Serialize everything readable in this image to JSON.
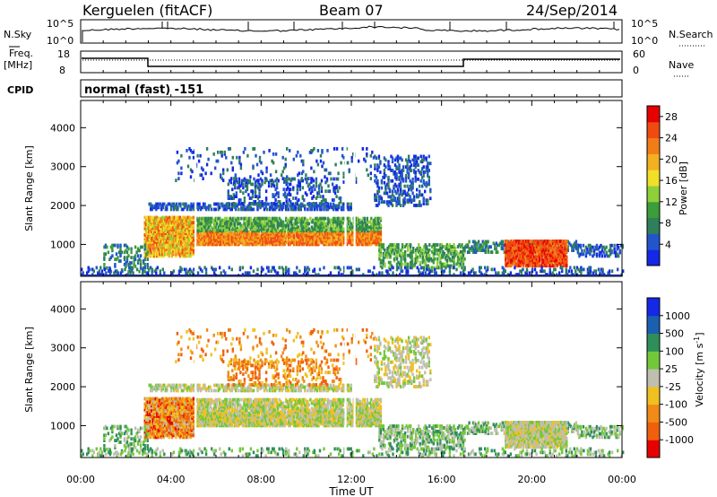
{
  "header": {
    "station": "Kerguelen (fitACF)",
    "beam": "Beam 07",
    "date": "24/Sep/2014"
  },
  "top_panels": {
    "nsky_label": "N.Sky",
    "nsky_tick_top": "10^5",
    "nsky_tick_bottom": "10^0",
    "nsearch_label": "N.Search",
    "nsearch_tick_top": "10^5",
    "nsearch_tick_bottom": "10^0",
    "freq_label_1": "Freq.",
    "freq_label_2": "[MHz]",
    "freq_tick_top": "18",
    "freq_tick_bottom": "8",
    "nave_label": "Nave",
    "nave_tick_top": "60",
    "nave_tick_bottom": "0",
    "cpid_label": "CPID",
    "cpid_text": "normal (fast) -151"
  },
  "colors": {
    "power_scale": [
      "#1428e6",
      "#2255cc",
      "#2f7f5a",
      "#3a9e3a",
      "#8fcf3a",
      "#f0e028",
      "#f3b020",
      "#f07d18",
      "#f04a10",
      "#e60000"
    ],
    "velocity_scale": [
      "#1428e6",
      "#1a5fb0",
      "#2f8f5a",
      "#73c83a",
      "#bfbfb0",
      "#f0c020",
      "#f08a18",
      "#f0600c",
      "#e60000"
    ]
  },
  "chart_data": [
    {
      "type": "heatmap",
      "name": "power",
      "ylabel": "Slant Range [km]",
      "yticks": [
        1000,
        2000,
        3000,
        4000
      ],
      "ylim": [
        180,
        4700
      ],
      "xticks": [
        "00:00",
        "04:00",
        "08:00",
        "12:00",
        "16:00",
        "20:00",
        "00:00"
      ],
      "xlim": [
        0,
        24
      ],
      "colorbar_label": "Power [dB]",
      "colorbar_ticks": [
        "4",
        "8",
        "12",
        "16",
        "20",
        "24",
        "28"
      ],
      "colorbar_range": [
        0,
        30
      ]
    },
    {
      "type": "heatmap",
      "name": "velocity",
      "ylabel": "Slant Range [km]",
      "yticks": [
        1000,
        2000,
        3000,
        4000
      ],
      "ylim": [
        180,
        4700
      ],
      "xticks": [
        "00:00",
        "04:00",
        "08:00",
        "12:00",
        "16:00",
        "20:00",
        "00:00"
      ],
      "xlim": [
        0,
        24
      ],
      "xlabel": "Time UT",
      "colorbar_label": "Velocity [m s^-1]",
      "colorbar_ticks": [
        "1000",
        "500",
        "100",
        "25",
        "-25",
        "-100",
        "-500",
        "-1000"
      ]
    }
  ]
}
